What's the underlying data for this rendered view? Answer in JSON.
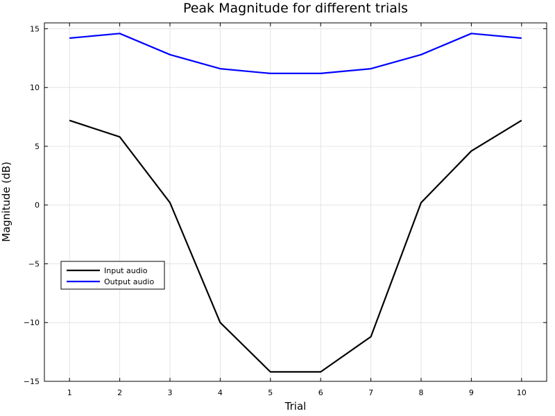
{
  "chart_data": {
    "type": "line",
    "title": "Peak Magnitude for different trials",
    "xlabel": "Trial",
    "ylabel": "Magnitude (dB)",
    "x": [
      1,
      2,
      3,
      4,
      5,
      6,
      7,
      8,
      9,
      10
    ],
    "xlim": [
      0.5,
      10.5
    ],
    "ylim": [
      -15,
      15.5
    ],
    "xticks": [
      1,
      2,
      3,
      4,
      5,
      6,
      7,
      8,
      9,
      10
    ],
    "yticks": [
      -15,
      -10,
      -5,
      0,
      5,
      10,
      15
    ],
    "ytick_labels": [
      "−15",
      "−10",
      "−5",
      "0",
      "5",
      "10",
      "15"
    ],
    "grid": true,
    "legend_position": "lower-left",
    "series": [
      {
        "name": "Input audio",
        "color": "#000000",
        "values": [
          7.2,
          5.8,
          0.2,
          -10.0,
          -14.2,
          -14.2,
          -11.2,
          0.2,
          4.6,
          7.2
        ]
      },
      {
        "name": "Output audio",
        "color": "#0000ff",
        "values": [
          14.2,
          14.6,
          12.8,
          11.6,
          11.2,
          11.2,
          11.6,
          12.8,
          14.6,
          14.2
        ]
      }
    ]
  }
}
